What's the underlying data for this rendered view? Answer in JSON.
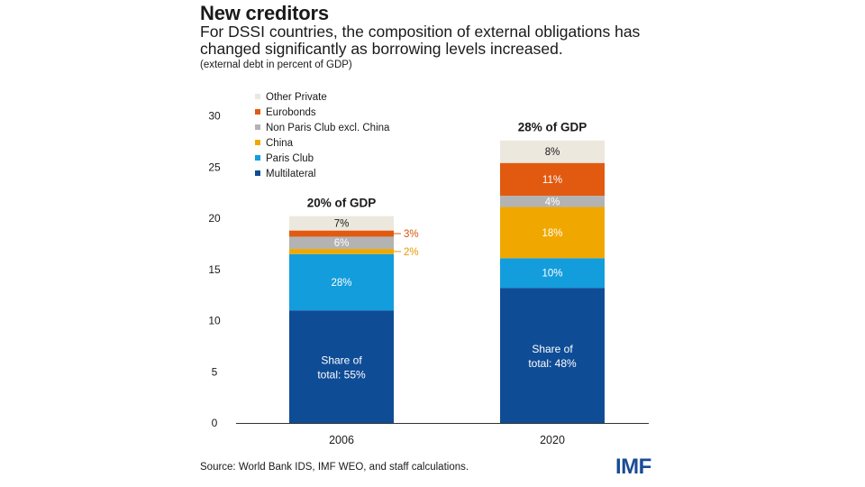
{
  "header": {
    "title": "New creditors",
    "subtitle": "For DSSI countries, the composition of external obligations has changed significantly as borrowing levels increased.",
    "note": "(external debt in percent of GDP)"
  },
  "footer": {
    "source": "Source: World Bank IDS, IMF WEO, and staff calculations.",
    "logo": "IMF"
  },
  "chart_data": {
    "type": "bar",
    "stacked": true,
    "categories": [
      "2006",
      "2020"
    ],
    "totals_labels": [
      "20% of GDP",
      "28% of GDP"
    ],
    "ylim": [
      0,
      30
    ],
    "yticks": [
      "0",
      "5",
      "10",
      "15",
      "20",
      "25",
      "30"
    ],
    "grid": false,
    "legend_position": "top-left",
    "series": [
      {
        "name": "Multilateral",
        "color": "#0f4c96",
        "values": [
          11.0,
          13.2
        ],
        "labels": [
          "Share of total: 55%",
          "Share of total: 48%"
        ],
        "label_color": "#ffffff"
      },
      {
        "name": "Paris Club",
        "color": "#139ddc",
        "values": [
          5.5,
          2.9
        ],
        "labels": [
          "28%",
          "10%"
        ],
        "label_color": "#ffffff"
      },
      {
        "name": "China",
        "color": "#f0a800",
        "values": [
          0.5,
          5.0
        ],
        "labels": [
          "2%",
          "18%"
        ],
        "label_color": "#ffffff",
        "outside_color": "#e59a00"
      },
      {
        "name": "Non Paris Club excl. China",
        "color": "#b3b3b3",
        "values": [
          1.2,
          1.1
        ],
        "labels": [
          "6%",
          "4%"
        ],
        "label_color": "#ffffff"
      },
      {
        "name": "Eurobonds",
        "color": "#e15a10",
        "values": [
          0.6,
          3.2
        ],
        "labels": [
          "3%",
          "11%"
        ],
        "label_color": "#ffffff",
        "outside_color": "#d9540c"
      },
      {
        "name": "Other Private",
        "color": "#ece8dd",
        "values": [
          1.4,
          2.2
        ],
        "labels": [
          "7%",
          "8%"
        ],
        "label_color": "#1a1a1a"
      }
    ],
    "outside_labels": [
      {
        "category": 0,
        "series": 4
      },
      {
        "category": 0,
        "series": 2
      }
    ]
  }
}
